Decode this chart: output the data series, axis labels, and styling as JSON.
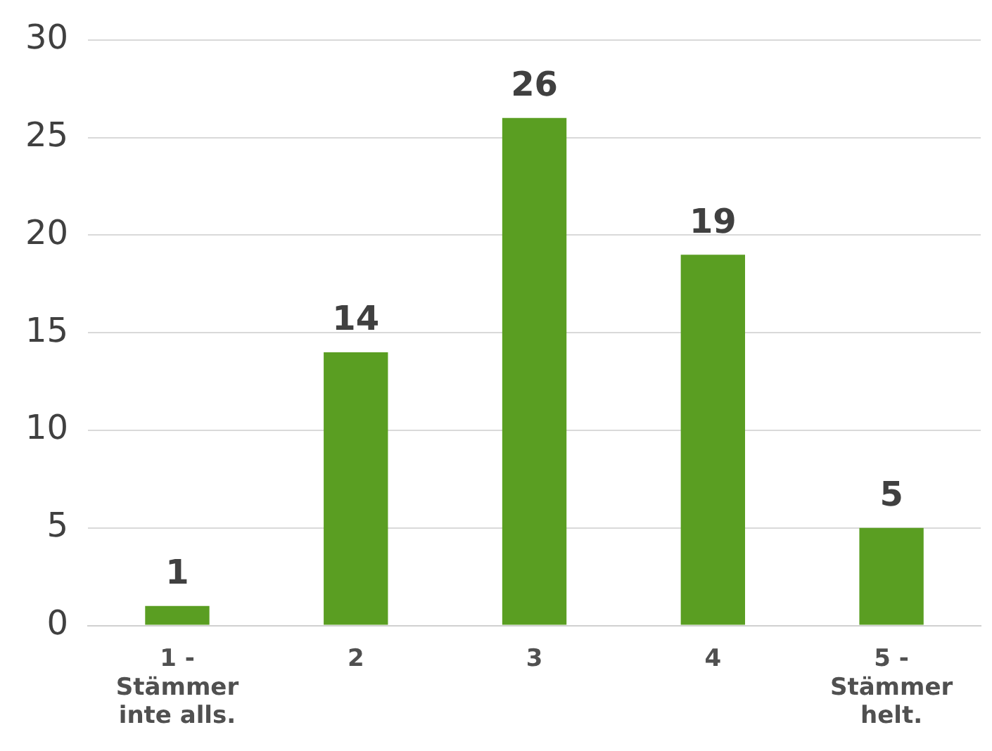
{
  "chart_data": {
    "type": "bar",
    "categories": [
      "1 - Stämmer inte alls.",
      "2",
      "3",
      "4",
      "5 - Stämmer helt."
    ],
    "values": [
      1,
      14,
      26,
      19,
      5
    ],
    "color": "#5a9e22",
    "ylim": [
      0,
      30
    ],
    "yticks": [
      0,
      5,
      10,
      15,
      20,
      25,
      30
    ],
    "grid": "y",
    "data_labels": true
  }
}
